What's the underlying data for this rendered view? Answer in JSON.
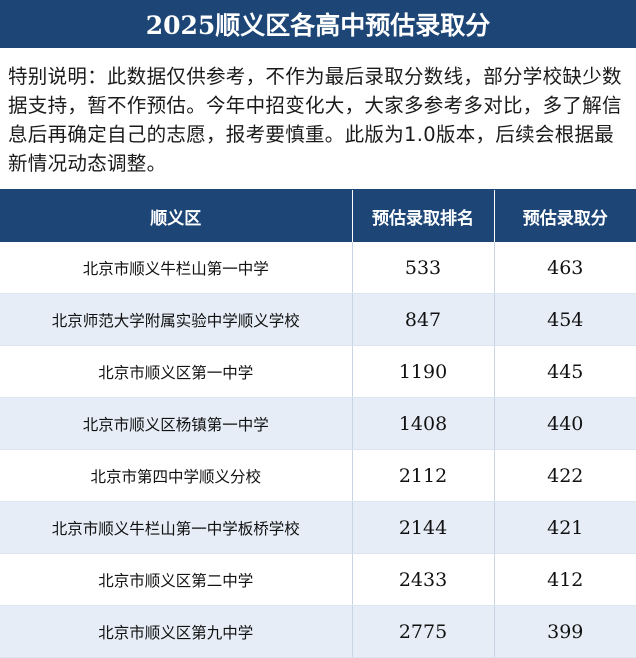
{
  "header": {
    "title": "2025顺义区各高中预估录取分"
  },
  "note": "特别说明：此数据仅供参考，不作为最后录取分数线，部分学校缺少数据支持，暂不作预估。今年中招变化大，大家多参考多对比，多了解信息后再确定自己的志愿，报考要慎重。此版为1.0版本，后续会根据最新情况动态调整。",
  "table": {
    "columns": [
      "顺义区",
      "预估录取排名",
      "预估录取分"
    ],
    "rows": [
      [
        "北京市顺义牛栏山第一中学",
        533,
        463
      ],
      [
        "北京师范大学附属实验中学顺义学校",
        847,
        454
      ],
      [
        "北京市顺义区第一中学",
        1190,
        445
      ],
      [
        "北京市顺义区杨镇第一中学",
        1408,
        440
      ],
      [
        "北京市第四中学顺义分校",
        2112,
        422
      ],
      [
        "北京市顺义牛栏山第一中学板桥学校",
        2144,
        421
      ],
      [
        "北京市顺义区第二中学",
        2433,
        412
      ],
      [
        "北京市顺义区第九中学",
        2775,
        399
      ]
    ]
  }
}
